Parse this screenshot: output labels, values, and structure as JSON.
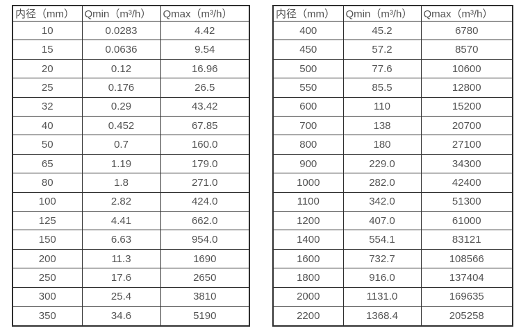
{
  "colors": {
    "border": "#2f2f2f",
    "text": "#545454",
    "background": "#ffffff"
  },
  "tables": {
    "left": {
      "headers": [
        "内径（mm）",
        "Qmin（m³/h）",
        "Qmax（m³/h）"
      ],
      "rows": [
        [
          "10",
          "0.0283",
          "4.42"
        ],
        [
          "15",
          "0.0636",
          "9.54"
        ],
        [
          "20",
          "0.12",
          "16.96"
        ],
        [
          "25",
          "0.176",
          "26.5"
        ],
        [
          "32",
          "0.29",
          "43.42"
        ],
        [
          "40",
          "0.452",
          "67.85"
        ],
        [
          "50",
          "0.7",
          "160.0"
        ],
        [
          "65",
          "1.19",
          "179.0"
        ],
        [
          "80",
          "1.8",
          "271.0"
        ],
        [
          "100",
          "2.82",
          "424.0"
        ],
        [
          "125",
          "4.41",
          "662.0"
        ],
        [
          "150",
          "6.63",
          "954.0"
        ],
        [
          "200",
          "11.3",
          "1690"
        ],
        [
          "250",
          "17.6",
          "2650"
        ],
        [
          "300",
          "25.4",
          "3810"
        ],
        [
          "350",
          "34.6",
          "5190"
        ]
      ]
    },
    "right": {
      "headers": [
        "内径（mm）",
        "Qmin（m³/h）",
        "Qmax（m³/h）"
      ],
      "rows": [
        [
          "400",
          "45.2",
          "6780"
        ],
        [
          "450",
          "57.2",
          "8570"
        ],
        [
          "500",
          "77.6",
          "10600"
        ],
        [
          "550",
          "85.5",
          "12800"
        ],
        [
          "600",
          "110",
          "15200"
        ],
        [
          "700",
          "138",
          "20700"
        ],
        [
          "800",
          "180",
          "27100"
        ],
        [
          "900",
          "229.0",
          "34300"
        ],
        [
          "1000",
          "282.0",
          "42400"
        ],
        [
          "1100",
          "342.0",
          "51300"
        ],
        [
          "1200",
          "407.0",
          "61000"
        ],
        [
          "1400",
          "554.1",
          "83121"
        ],
        [
          "1600",
          "732.7",
          "108566"
        ],
        [
          "1800",
          "916.0",
          "137404"
        ],
        [
          "2000",
          "1131.0",
          "169635"
        ],
        [
          "2200",
          "1368.4",
          "205258"
        ]
      ]
    }
  }
}
